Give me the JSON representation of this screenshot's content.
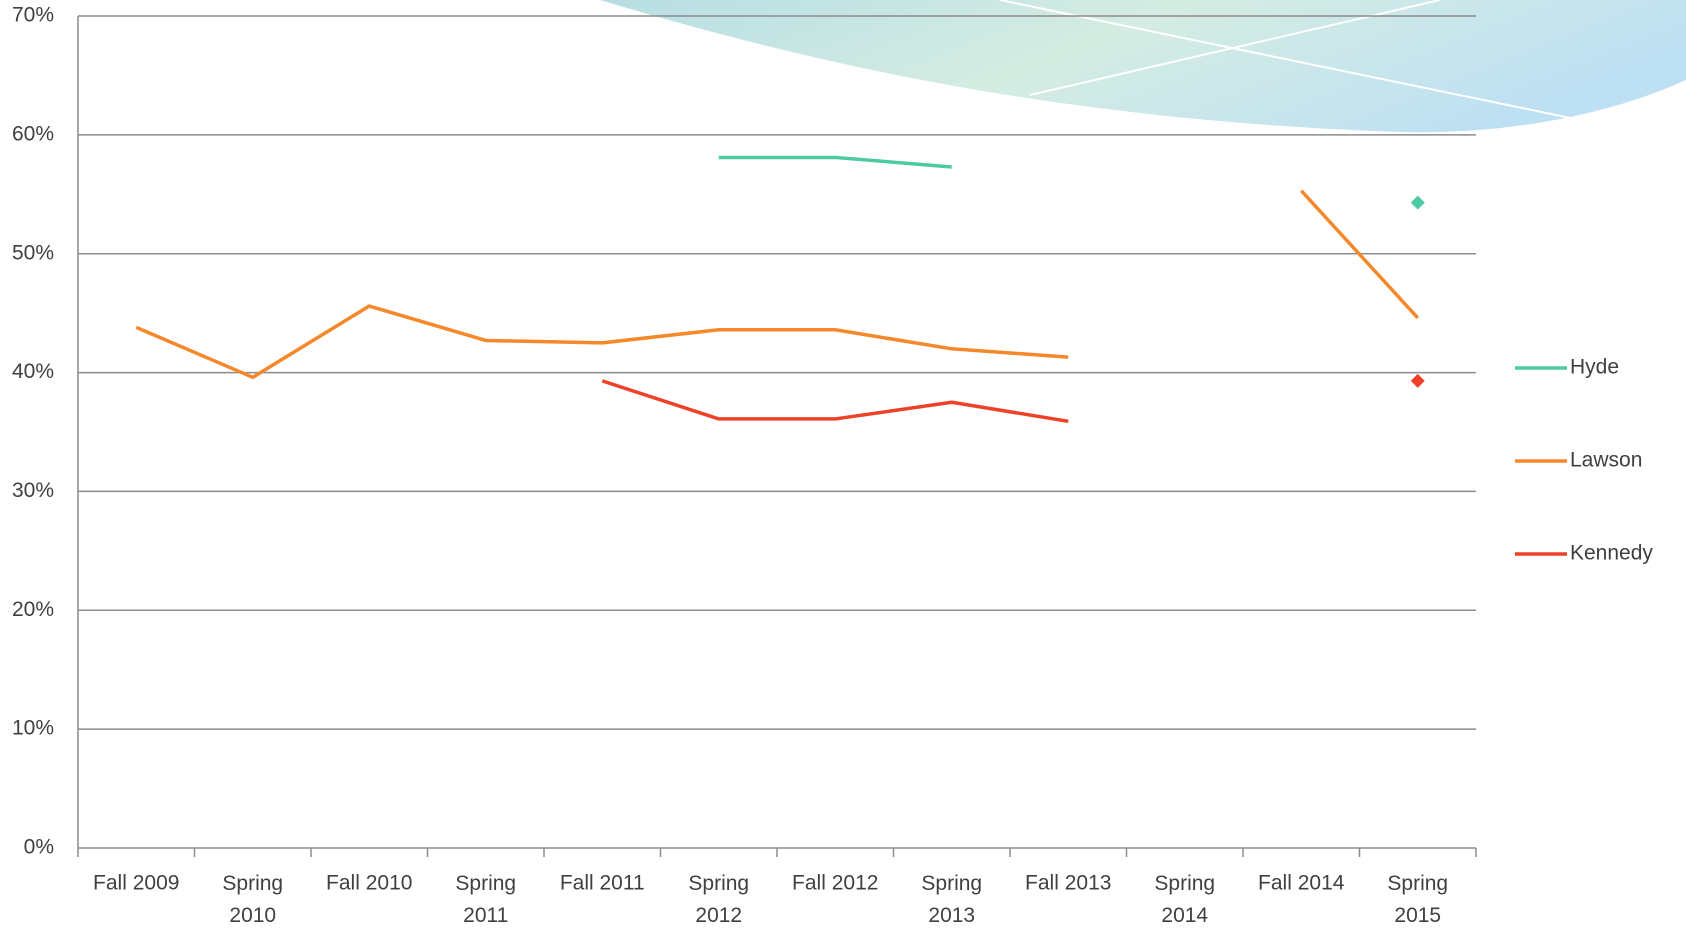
{
  "chart_data": {
    "type": "line",
    "categories": [
      "Fall 2009",
      "Spring 2010",
      "Fall 2010",
      "Spring 2011",
      "Fall 2011",
      "Spring 2012",
      "Fall 2012",
      "Spring 2013",
      "Fall 2013",
      "Spring 2014",
      "Fall 2014",
      "Spring 2015"
    ],
    "series": [
      {
        "name": "Hyde",
        "color": "#4dc9a4",
        "values": [
          null,
          null,
          null,
          null,
          null,
          58.1,
          58.1,
          57.3,
          null,
          null,
          null,
          54.3
        ]
      },
      {
        "name": "Lawson",
        "color": "#f5882a",
        "values": [
          43.8,
          39.6,
          45.6,
          42.7,
          42.5,
          43.6,
          43.6,
          42.0,
          41.3,
          null,
          55.3,
          44.6
        ]
      },
      {
        "name": "Kennedy",
        "color": "#ee4128",
        "values": [
          null,
          null,
          null,
          null,
          39.3,
          36.1,
          36.1,
          37.5,
          35.9,
          null,
          null,
          39.3
        ]
      }
    ],
    "ylim": [
      0,
      70
    ],
    "yticks": [
      {
        "value": 0,
        "label": "0%"
      },
      {
        "value": 10,
        "label": "10%"
      },
      {
        "value": 20,
        "label": "20%"
      },
      {
        "value": 30,
        "label": "30%"
      },
      {
        "value": 40,
        "label": "40%"
      },
      {
        "value": 50,
        "label": "50%"
      },
      {
        "value": 60,
        "label": "60%"
      },
      {
        "value": 70,
        "label": "70%"
      }
    ],
    "grid": true,
    "legend": "right"
  }
}
